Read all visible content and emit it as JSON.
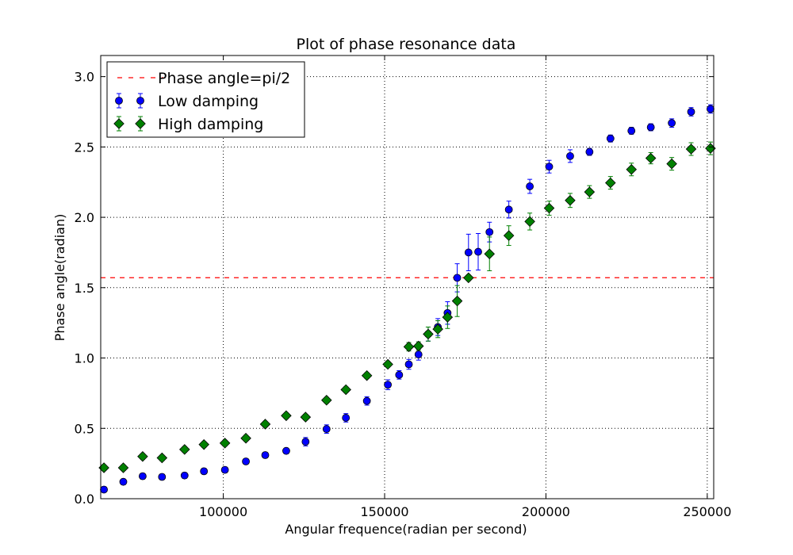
{
  "chart_data": {
    "type": "scatter",
    "title": "Plot of phase resonance data",
    "xlabel": "Angular frequence(radian per second)",
    "ylabel": "Phase angle(radian)",
    "xlim": [
      62000,
      252000
    ],
    "ylim": [
      0.0,
      3.15
    ],
    "xticks": [
      100000,
      150000,
      200000,
      250000
    ],
    "xtick_labels": [
      "100000",
      "150000",
      "200000",
      "250000"
    ],
    "yticks": [
      0.0,
      0.5,
      1.0,
      1.5,
      2.0,
      2.5,
      3.0
    ],
    "ytick_labels": [
      "0.0",
      "0.5",
      "1.0",
      "1.5",
      "2.0",
      "2.5",
      "3.0"
    ],
    "grid": true,
    "legend_position": "top-left",
    "reference_line": {
      "name": "Phase angle=pi/2",
      "y": 1.5708,
      "color": "#ff0000",
      "style": "dashed"
    },
    "series": [
      {
        "name": "Low damping",
        "marker": "circle",
        "color": "#0000ff",
        "points": [
          [
            63000,
            0.065,
            0.02
          ],
          [
            69000,
            0.12,
            0.02
          ],
          [
            75000,
            0.16,
            0.02
          ],
          [
            81000,
            0.155,
            0.02
          ],
          [
            88000,
            0.165,
            0.02
          ],
          [
            94000,
            0.195,
            0.02
          ],
          [
            100500,
            0.205,
            0.02
          ],
          [
            107000,
            0.265,
            0.02
          ],
          [
            113000,
            0.31,
            0.02
          ],
          [
            119500,
            0.34,
            0.02
          ],
          [
            125500,
            0.405,
            0.03
          ],
          [
            132000,
            0.495,
            0.03
          ],
          [
            138000,
            0.575,
            0.03
          ],
          [
            144500,
            0.695,
            0.03
          ],
          [
            151000,
            0.81,
            0.035
          ],
          [
            154500,
            0.88,
            0.03
          ],
          [
            157500,
            0.955,
            0.035
          ],
          [
            160500,
            1.025,
            0.04
          ],
          [
            163500,
            1.17,
            0.05
          ],
          [
            166500,
            1.22,
            0.06
          ],
          [
            169500,
            1.32,
            0.08
          ],
          [
            172500,
            1.57,
            0.1
          ],
          [
            176000,
            1.75,
            0.13
          ],
          [
            179000,
            1.755,
            0.13
          ],
          [
            182500,
            1.895,
            0.07
          ],
          [
            188500,
            2.055,
            0.06
          ],
          [
            195000,
            2.22,
            0.05
          ],
          [
            201000,
            2.36,
            0.045
          ],
          [
            207500,
            2.435,
            0.045
          ],
          [
            213500,
            2.465,
            0.025
          ],
          [
            220000,
            2.56,
            0.025
          ],
          [
            226500,
            2.615,
            0.025
          ],
          [
            232500,
            2.64,
            0.025
          ],
          [
            239000,
            2.67,
            0.03
          ],
          [
            245000,
            2.75,
            0.03
          ],
          [
            251000,
            2.77,
            0.03
          ]
        ]
      },
      {
        "name": "High damping",
        "marker": "diamond",
        "color": "#008000",
        "points": [
          [
            63000,
            0.22,
            0.02
          ],
          [
            69000,
            0.22,
            0.02
          ],
          [
            75000,
            0.3,
            0.02
          ],
          [
            81000,
            0.29,
            0.02
          ],
          [
            88000,
            0.35,
            0.02
          ],
          [
            94000,
            0.385,
            0.02
          ],
          [
            100500,
            0.395,
            0.02
          ],
          [
            107000,
            0.43,
            0.02
          ],
          [
            113000,
            0.53,
            0.02
          ],
          [
            119500,
            0.59,
            0.02
          ],
          [
            125500,
            0.58,
            0.02
          ],
          [
            132000,
            0.7,
            0.02
          ],
          [
            138000,
            0.775,
            0.02
          ],
          [
            144500,
            0.875,
            0.02
          ],
          [
            151000,
            0.955,
            0.02
          ],
          [
            157500,
            1.08,
            0.03
          ],
          [
            160500,
            1.085,
            0.03
          ],
          [
            163500,
            1.17,
            0.05
          ],
          [
            166500,
            1.205,
            0.06
          ],
          [
            169500,
            1.29,
            0.08
          ],
          [
            172500,
            1.405,
            0.11
          ],
          [
            176000,
            1.57,
            0.02
          ],
          [
            182500,
            1.74,
            0.12
          ],
          [
            188500,
            1.87,
            0.07
          ],
          [
            195000,
            1.97,
            0.06
          ],
          [
            201000,
            2.065,
            0.05
          ],
          [
            207500,
            2.12,
            0.05
          ],
          [
            213500,
            2.18,
            0.045
          ],
          [
            220000,
            2.245,
            0.045
          ],
          [
            226500,
            2.34,
            0.045
          ],
          [
            232500,
            2.42,
            0.04
          ],
          [
            239000,
            2.38,
            0.045
          ],
          [
            245000,
            2.485,
            0.045
          ],
          [
            251000,
            2.49,
            0.045
          ]
        ]
      }
    ]
  }
}
